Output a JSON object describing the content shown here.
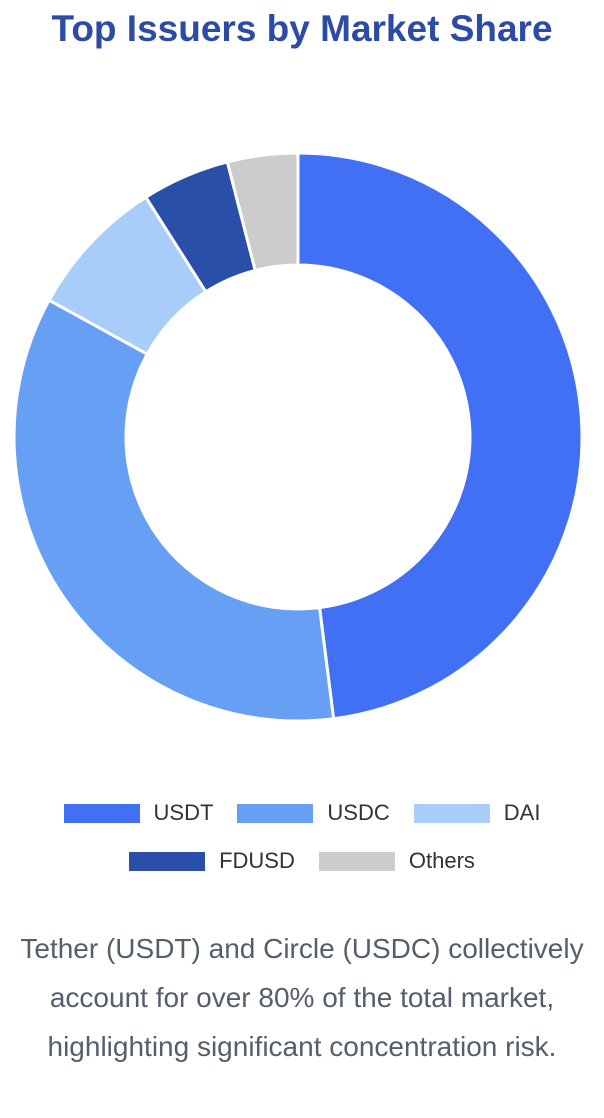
{
  "chart_data": {
    "type": "donut",
    "title": "Top Issuers by Market Share",
    "categories": [
      "USDT",
      "USDC",
      "DAI",
      "FDUSD",
      "Others"
    ],
    "values": [
      48,
      35,
      8,
      5,
      4
    ],
    "colors": [
      "#4170f5",
      "#679ff5",
      "#a9cdf9",
      "#2a4fa8",
      "#cccccc"
    ],
    "caption": "Tether (USDT) and Circle (USDC) collectively account for over 80% of the total market, highlighting significant concentration risk."
  }
}
